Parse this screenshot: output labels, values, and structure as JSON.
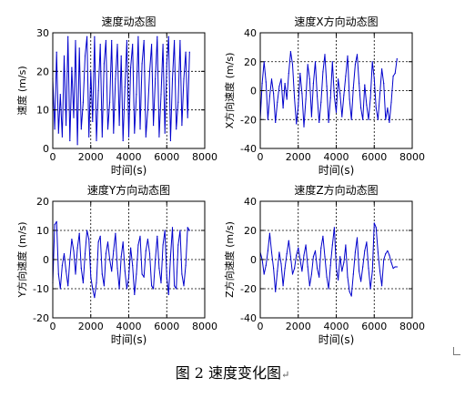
{
  "figure_caption": "图 2  速度变化图",
  "caption_mark": "↵",
  "series_color": "#0000cc",
  "chart_data": [
    {
      "type": "line",
      "title": "速度动态图",
      "xlabel": "时间(s)",
      "ylabel": "速度 (m/s)",
      "xlim": [
        0,
        8000
      ],
      "ylim": [
        0,
        30
      ],
      "xticks": [
        0,
        2000,
        4000,
        6000,
        8000
      ],
      "yticks": [
        0,
        10,
        20,
        30
      ],
      "grid": true,
      "x": [
        0,
        100,
        200,
        300,
        400,
        500,
        600,
        700,
        800,
        900,
        1000,
        1100,
        1200,
        1300,
        1400,
        1500,
        1600,
        1700,
        1800,
        1900,
        2000,
        2100,
        2200,
        2300,
        2400,
        2500,
        2600,
        2700,
        2800,
        2900,
        3000,
        3100,
        3200,
        3300,
        3400,
        3500,
        3600,
        3700,
        3800,
        3900,
        4000,
        4100,
        4200,
        4300,
        4400,
        4500,
        4600,
        4700,
        4800,
        4900,
        5000,
        5100,
        5200,
        5300,
        5400,
        5500,
        5600,
        5700,
        5800,
        5900,
        6000,
        6100,
        6200,
        6300,
        6400,
        6500,
        6600,
        6700,
        6800,
        6900,
        7000,
        7100,
        7200
      ],
      "y": [
        18,
        5,
        25,
        4,
        14,
        3,
        24,
        6,
        29,
        2,
        21,
        8,
        28,
        1,
        26,
        5,
        12,
        24,
        29,
        3,
        20,
        7,
        29,
        2,
        15,
        27,
        3,
        22,
        28,
        5,
        12,
        28,
        4,
        18,
        27,
        6,
        24,
        2,
        16,
        28,
        3,
        21,
        27,
        4,
        14,
        29,
        5,
        22,
        28,
        3,
        10,
        20,
        27,
        6,
        18,
        29,
        3,
        14,
        27,
        4,
        22,
        29,
        2,
        18,
        28,
        5,
        12,
        28,
        6,
        18,
        25,
        8,
        25
      ]
    },
    {
      "type": "line",
      "title": "速度X方向动态图",
      "xlabel": "时间(s)",
      "ylabel": "X方向速度 (m/s)",
      "xlim": [
        0,
        8000
      ],
      "ylim": [
        -40,
        40
      ],
      "xticks": [
        0,
        2000,
        4000,
        6000,
        8000
      ],
      "yticks": [
        -40,
        -20,
        0,
        20,
        40
      ],
      "grid": true,
      "x": [
        0,
        100,
        200,
        300,
        400,
        500,
        600,
        700,
        800,
        900,
        1000,
        1100,
        1200,
        1300,
        1400,
        1500,
        1600,
        1700,
        1800,
        1900,
        2000,
        2100,
        2200,
        2300,
        2400,
        2500,
        2600,
        2700,
        2800,
        2900,
        3000,
        3100,
        3200,
        3300,
        3400,
        3500,
        3600,
        3700,
        3800,
        3900,
        4000,
        4100,
        4200,
        4300,
        4400,
        4500,
        4600,
        4700,
        4800,
        4900,
        5000,
        5100,
        5200,
        5300,
        5400,
        5500,
        5600,
        5700,
        5800,
        5900,
        6000,
        6100,
        6200,
        6300,
        6400,
        6500,
        6600,
        6700,
        6800,
        6900,
        7000,
        7100,
        7200
      ],
      "y": [
        -20,
        5,
        20,
        6,
        -20,
        -4,
        8,
        -2,
        -22,
        -8,
        3,
        8,
        -12,
        5,
        -6,
        12,
        27,
        18,
        -5,
        -23,
        -10,
        12,
        -2,
        -25,
        -6,
        18,
        8,
        -18,
        5,
        20,
        -4,
        -22,
        -8,
        13,
        25,
        3,
        -22,
        -5,
        20,
        -4,
        -15,
        8,
        -2,
        -18,
        -3,
        10,
        24,
        -6,
        -20,
        2,
        18,
        25,
        5,
        -12,
        -20,
        4,
        -10,
        -20,
        -5,
        20,
        8,
        -12,
        -20,
        -2,
        15,
        5,
        -20,
        -12,
        -22,
        -8,
        10,
        12,
        22
      ]
    },
    {
      "type": "line",
      "title": "速度Y方向动态图",
      "xlabel": "时间(s)",
      "ylabel": "Y方向速度 (m/s)",
      "xlim": [
        0,
        8000
      ],
      "ylim": [
        -20,
        20
      ],
      "xticks": [
        0,
        2000,
        4000,
        6000,
        8000
      ],
      "yticks": [
        -20,
        -10,
        0,
        10,
        20
      ],
      "grid": true,
      "x": [
        0,
        100,
        200,
        300,
        400,
        500,
        600,
        700,
        800,
        900,
        1000,
        1100,
        1200,
        1300,
        1400,
        1500,
        1600,
        1700,
        1800,
        1900,
        2000,
        2100,
        2200,
        2300,
        2400,
        2500,
        2600,
        2700,
        2800,
        2900,
        3000,
        3100,
        3200,
        3300,
        3400,
        3500,
        3600,
        3700,
        3800,
        3900,
        4000,
        4100,
        4200,
        4300,
        4400,
        4500,
        4600,
        4700,
        4800,
        4900,
        5000,
        5100,
        5200,
        5300,
        5400,
        5500,
        5600,
        5700,
        5800,
        5900,
        6000,
        6100,
        6200,
        6300,
        6400,
        6500,
        6600,
        6700,
        6800,
        6900,
        7000,
        7100,
        7200
      ],
      "y": [
        -8,
        12,
        13,
        -5,
        -10,
        -2,
        2,
        -4,
        -9,
        0,
        7,
        3,
        -5,
        4,
        9,
        -3,
        -8,
        2,
        10,
        7,
        -6,
        -10,
        -13,
        -8,
        6,
        8,
        -5,
        -9,
        2,
        6,
        0,
        -4,
        3,
        9,
        -3,
        -10,
        1,
        6,
        -4,
        -10,
        -6,
        4,
        -2,
        -12,
        -5,
        5,
        8,
        -5,
        -6,
        3,
        7,
        2,
        -9,
        -10,
        0,
        8,
        -3,
        -8,
        5,
        10,
        -6,
        -12,
        1,
        11,
        -9,
        -10,
        5,
        10,
        -5,
        -9,
        -2,
        11,
        10
      ]
    },
    {
      "type": "line",
      "title": "速度Z方向动态图",
      "xlabel": "时间(s)",
      "ylabel": "Z方向速度 (m/s)",
      "xlim": [
        0,
        8000
      ],
      "ylim": [
        -40,
        40
      ],
      "xticks": [
        0,
        2000,
        4000,
        6000,
        8000
      ],
      "yticks": [
        -40,
        -20,
        0,
        20,
        40
      ],
      "grid": true,
      "x": [
        0,
        100,
        200,
        300,
        400,
        500,
        600,
        700,
        800,
        900,
        1000,
        1100,
        1200,
        1300,
        1400,
        1500,
        1600,
        1700,
        1800,
        1900,
        2000,
        2100,
        2200,
        2300,
        2400,
        2500,
        2600,
        2700,
        2800,
        2900,
        3000,
        3100,
        3200,
        3300,
        3400,
        3500,
        3600,
        3700,
        3800,
        3900,
        4000,
        4100,
        4200,
        4300,
        4400,
        4500,
        4600,
        4700,
        4800,
        4900,
        5000,
        5100,
        5200,
        5300,
        5400,
        5500,
        5600,
        5700,
        5800,
        5900,
        6000,
        6100,
        6200,
        6300,
        6400,
        6500,
        6600,
        6700,
        6800,
        6900,
        7000,
        7100,
        7200
      ],
      "y": [
        5,
        0,
        -10,
        -4,
        6,
        18,
        5,
        -6,
        -22,
        -8,
        5,
        -3,
        -18,
        -6,
        4,
        13,
        2,
        -10,
        -6,
        3,
        8,
        0,
        -8,
        3,
        10,
        -5,
        -18,
        -10,
        2,
        6,
        -6,
        -12,
        8,
        16,
        2,
        -12,
        -20,
        -4,
        10,
        22,
        -5,
        -14,
        2,
        -8,
        -2,
        10,
        -12,
        -22,
        -25,
        -10,
        5,
        15,
        -8,
        -15,
        -5,
        6,
        12,
        -6,
        -20,
        -8,
        25,
        22,
        5,
        -8,
        -18,
        0,
        4,
        6,
        3,
        -2,
        -6,
        -5,
        -5
      ]
    }
  ]
}
